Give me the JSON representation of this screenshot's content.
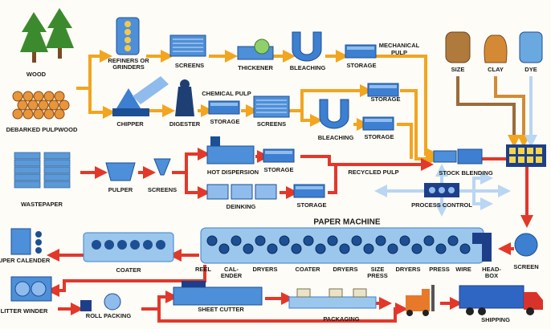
{
  "labels": [
    "WOOD",
    "DEBARKED PULPWOOD",
    "REFINERS OR",
    "GRINDERS",
    "SCREENS",
    "THICKENER",
    "BLEACHING",
    "STORAGE",
    "MECHANICAL",
    "PULP",
    "SIZE",
    "CLAY",
    "DYE",
    "CHIPPER",
    "DIGESTER",
    "STORAGE",
    "SCREENS",
    "CHEMICAL PULP",
    "STORAGE",
    "BLEACHING",
    "STORAGE",
    "WASTEPAPER",
    "PULPER",
    "SCREENS",
    "HOT DISPERSION",
    "STORAGE",
    "DEINKING",
    "STORAGE",
    "RECYCLED PULP",
    "STOCK BLENDING",
    "PROCESS CONTROL",
    "PAPER MACHINE",
    "REEL",
    "CAL-",
    "ENDER",
    "DRYERS",
    "COATER",
    "DRYERS",
    "SIZE",
    "PRESS",
    "DRYERS",
    "PRESS",
    "WIRE",
    "HEAD-",
    "BOX",
    "SCREEN",
    "COATER",
    "UPER CALENDER",
    "LITTER WINDER",
    "ROLL PACKING",
    "SHEET CUTTER",
    "PACKAGING",
    "SHIPPING"
  ]
}
